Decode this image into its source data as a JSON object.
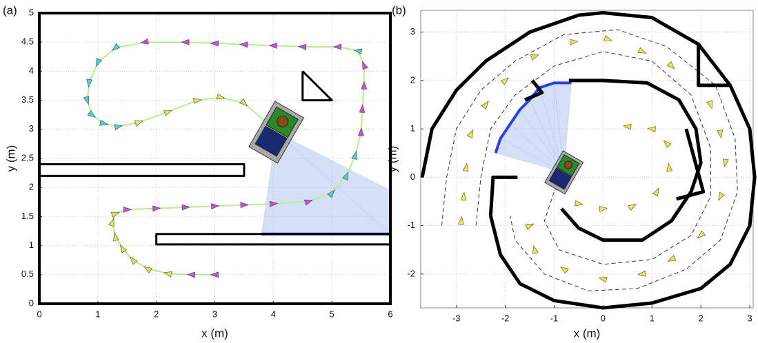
{
  "chart_data": [
    {
      "type": "trajectory",
      "panel_label": "(a)",
      "xlabel": "x (m)",
      "ylabel": "y (m)",
      "xlim": [
        0,
        6
      ],
      "ylim": [
        0,
        5
      ],
      "xticks": [
        0,
        1,
        2,
        3,
        4,
        5,
        6
      ],
      "yticks": [
        0,
        0.5,
        1,
        1.5,
        2,
        2.5,
        3,
        3.5,
        4,
        4.5,
        5
      ],
      "grid": true,
      "path": {
        "color": "#b5f08a",
        "x": [
          3.0,
          2.6,
          2.2,
          1.85,
          1.6,
          1.42,
          1.3,
          1.25,
          1.3,
          1.5,
          2.0,
          2.5,
          3.0,
          3.5,
          4.0,
          4.6,
          5.0,
          5.25,
          5.4,
          5.5,
          5.52,
          5.55,
          5.55,
          5.45,
          5.1,
          4.5,
          4.0,
          3.5,
          3.0,
          2.5,
          1.8,
          1.3,
          1.0,
          0.85,
          0.82,
          0.9,
          1.1,
          1.35,
          1.7,
          2.2,
          2.7,
          3.1,
          3.5,
          3.9
        ],
        "y": [
          0.5,
          0.5,
          0.52,
          0.6,
          0.75,
          0.95,
          1.15,
          1.4,
          1.55,
          1.62,
          1.64,
          1.66,
          1.68,
          1.7,
          1.72,
          1.76,
          1.9,
          2.2,
          2.55,
          2.95,
          3.35,
          3.75,
          4.1,
          4.35,
          4.42,
          4.42,
          4.44,
          4.46,
          4.48,
          4.5,
          4.5,
          4.4,
          4.15,
          3.8,
          3.5,
          3.25,
          3.1,
          3.05,
          3.12,
          3.3,
          3.5,
          3.55,
          3.45,
          3.1
        ],
        "marker_colors": [
          "#c84ee0",
          "#c84ee0",
          "#e8e05a",
          "#e8e05a",
          "#e8e05a",
          "#e8e05a",
          "#e8e05a",
          "#e8e05a",
          "#e8e05a",
          "#c84ee0",
          "#c84ee0",
          "#c84ee0",
          "#c84ee0",
          "#c84ee0",
          "#c84ee0",
          "#c84ee0",
          "#4fd0d8",
          "#4fd0d8",
          "#4fd0d8",
          "#c84ee0",
          "#c84ee0",
          "#c84ee0",
          "#c84ee0",
          "#4fd0d8",
          "#c84ee0",
          "#c84ee0",
          "#c84ee0",
          "#c84ee0",
          "#c84ee0",
          "#c84ee0",
          "#c84ee0",
          "#4fd0d8",
          "#4fd0d8",
          "#4fd0d8",
          "#4fd0d8",
          "#4fd0d8",
          "#4fd0d8",
          "#4fd0d8",
          "#e8e05a",
          "#e8e05a",
          "#e8e05a",
          "#e8e05a",
          "#e8e05a",
          "#e8e05a"
        ]
      },
      "walls": [
        {
          "x": [
            0,
            3.5,
            3.5,
            0
          ],
          "y": [
            2.4,
            2.4,
            2.2,
            2.2
          ]
        },
        {
          "x": [
            6,
            2,
            2,
            6
          ],
          "y": [
            1.2,
            1.2,
            1.02,
            1.02
          ]
        },
        {
          "x": [
            4.5,
            5.0,
            4.5,
            4.5
          ],
          "y": [
            4.0,
            3.5,
            3.5,
            4.0
          ]
        }
      ],
      "scan": {
        "x": [
          3.8,
          6,
          6
        ],
        "y": [
          1.2,
          1.2,
          1.95
        ]
      },
      "robot": {
        "x": 4.05,
        "y": 2.95,
        "angle": 30
      }
    },
    {
      "type": "trajectory",
      "panel_label": "(b)",
      "xlabel": "x (m)",
      "ylabel": "y (m)",
      "xlim": [
        -3.73,
        3.07
      ],
      "ylim": [
        -2.7,
        3.45
      ],
      "xticks": [
        -3,
        -2,
        -1,
        0,
        1,
        2,
        3
      ],
      "yticks": [
        -2,
        -1,
        0,
        1,
        2,
        3
      ],
      "grid": true,
      "markers": {
        "color": "#f0e640",
        "x": [
          -2.9,
          -2.85,
          -2.8,
          -2.7,
          -2.4,
          -2.0,
          -1.4,
          -0.6,
          0.1,
          0.8,
          1.4,
          2.2,
          2.4,
          2.5,
          2.4,
          2.0,
          1.4,
          0.8,
          0,
          -0.8,
          -1.4,
          -1.5,
          -0.5,
          0,
          0.6,
          1.1,
          1.35,
          1.3,
          1.0,
          0.5
        ],
        "y": [
          -0.9,
          -0.4,
          0.2,
          0.9,
          1.5,
          2.0,
          2.5,
          2.8,
          2.85,
          2.6,
          2.3,
          1.5,
          0.9,
          0.3,
          -0.4,
          -1.2,
          -1.7,
          -2.0,
          -2.1,
          -1.9,
          -1.5,
          -1.0,
          -0.55,
          -0.65,
          -0.6,
          -0.3,
          0.2,
          0.7,
          1.0,
          1.05
        ]
      },
      "guides": [
        {
          "x": [
            -3.3,
            -3.2,
            -3.0,
            -2.5,
            -1.8,
            -0.8,
            0.3,
            1.3,
            2.3,
            2.7,
            2.75,
            2.4,
            1.7,
            0.7,
            -0.3,
            -1.2,
            -1.8,
            -1.9
          ],
          "y": [
            -1,
            0,
            1,
            1.8,
            2.4,
            2.95,
            3.05,
            2.7,
            1.9,
            0.8,
            -0.3,
            -1.3,
            -1.9,
            -2.3,
            -2.35,
            -2.0,
            -1.3,
            -0.8
          ]
        },
        {
          "x": [
            -2.6,
            -2.5,
            -2.3,
            -1.8,
            -1.0,
            0,
            1.0,
            1.8,
            2.2,
            2.2,
            1.8,
            1.0,
            0,
            -0.9,
            -1.2,
            -1.0,
            -0.5
          ],
          "y": [
            -1,
            0,
            1,
            1.7,
            2.3,
            2.6,
            2.4,
            1.7,
            0.6,
            -0.4,
            -1.2,
            -1.7,
            -1.8,
            -1.5,
            -0.9,
            -0.3,
            0.3
          ]
        }
      ],
      "walls": [
        {
          "x": [
            -3.7,
            -3.5,
            -3.0,
            -2.4,
            -1.5,
            -0.5,
            0,
            1,
            1.95,
            2.6,
            3.0,
            3.1,
            3.0,
            2.6,
            2.0,
            1,
            0,
            -1,
            -1.7,
            -2.1,
            -2.3
          ],
          "y": [
            0,
            1,
            1.8,
            2.4,
            3.0,
            3.35,
            3.4,
            3.3,
            2.75,
            1.9,
            1,
            0,
            -1,
            -1.8,
            -2.3,
            -2.6,
            -2.7,
            -2.55,
            -2.2,
            -1.6,
            -0.8
          ]
        },
        {
          "x": [
            1.95,
            1.95,
            2.6
          ],
          "y": [
            2.75,
            1.9,
            1.9
          ]
        },
        {
          "x": [
            -2.3,
            -2.25,
            -1.75
          ],
          "y": [
            -0.8,
            0,
            0
          ]
        },
        {
          "x": [
            -0.85,
            -0.5,
            0,
            0.8,
            1.4,
            1.8,
            2.0,
            1.9,
            1.55,
            0.9,
            0,
            -0.7
          ],
          "y": [
            -0.65,
            -1.05,
            -1.3,
            -1.3,
            -0.9,
            -0.3,
            0.3,
            1.0,
            1.6,
            1.95,
            2.0,
            2.0
          ]
        },
        {
          "x": [
            1.7,
            2.05,
            1.5
          ],
          "y": [
            1.0,
            -0.3,
            -0.45
          ]
        },
        {
          "x": [
            -1.45,
            -1.25,
            -1.6
          ],
          "y": [
            2.0,
            1.75,
            1.6
          ]
        }
      ],
      "scan": {
        "x": [
          -2.2,
          -2.1,
          -1.9,
          -1.7,
          -1.5,
          -1.3,
          -1.0,
          -0.65
        ],
        "y": [
          0.5,
          0.8,
          1.1,
          1.4,
          1.6,
          1.85,
          1.95,
          1.95
        ]
      },
      "robot": {
        "x": -0.8,
        "y": 0.1,
        "angle": 30
      }
    }
  ]
}
